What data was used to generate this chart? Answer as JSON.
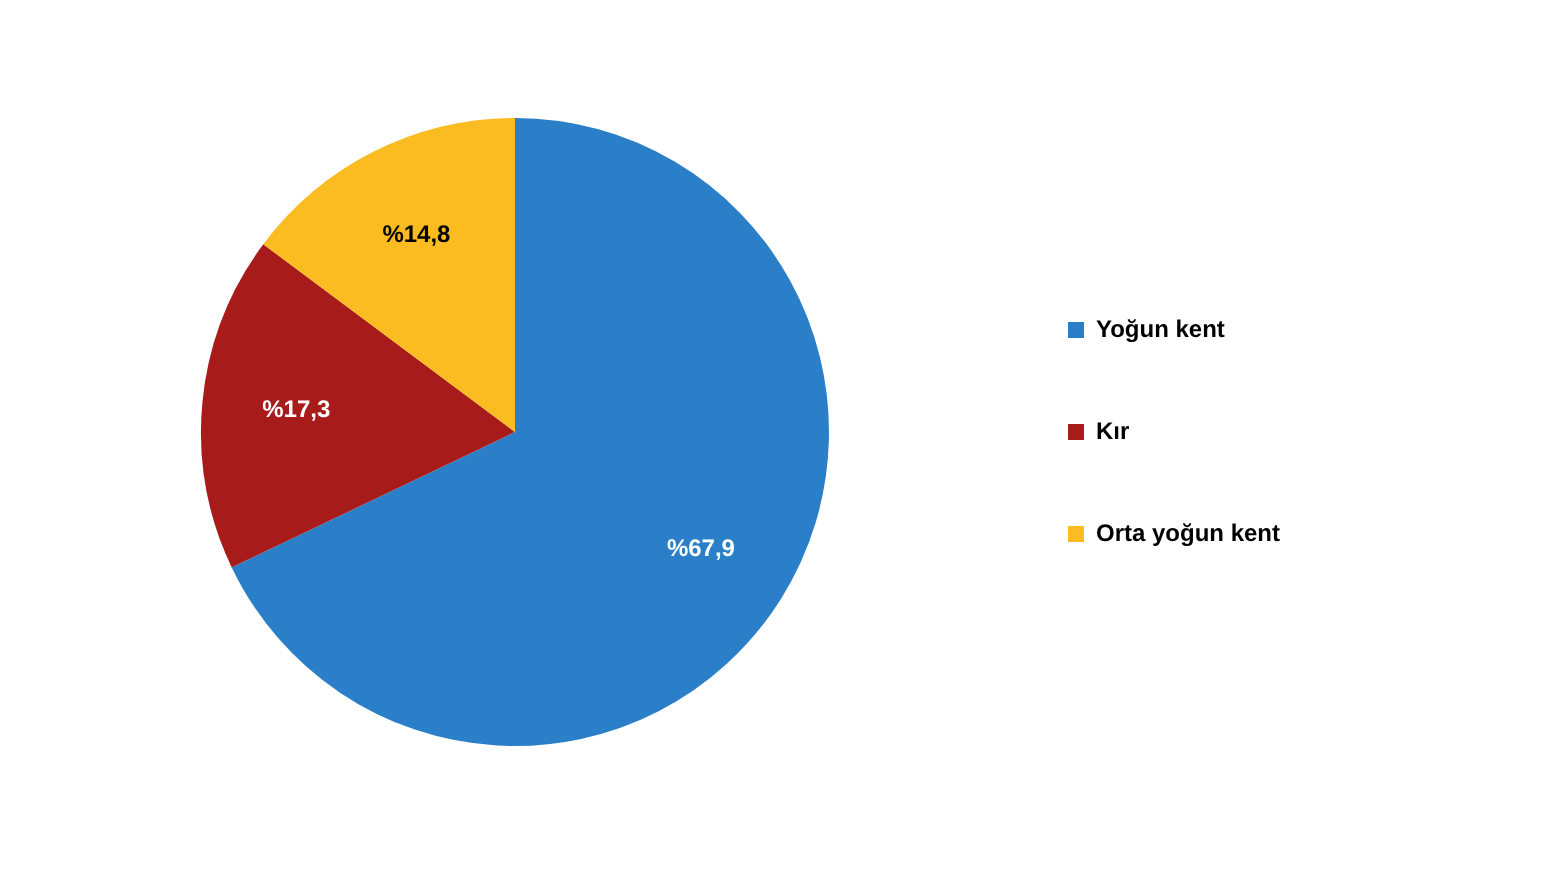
{
  "chart_data": {
    "type": "pie",
    "categories": [
      "Yoğun kent",
      "Kır",
      "Orta yoğun kent"
    ],
    "values": [
      67.9,
      17.3,
      14.8
    ],
    "colors": [
      "#2a7fc8",
      "#a81b1b",
      "#fbbc22"
    ],
    "value_labels": [
      "%67,9",
      "%17,3",
      "%14,8"
    ],
    "legend": "right"
  }
}
